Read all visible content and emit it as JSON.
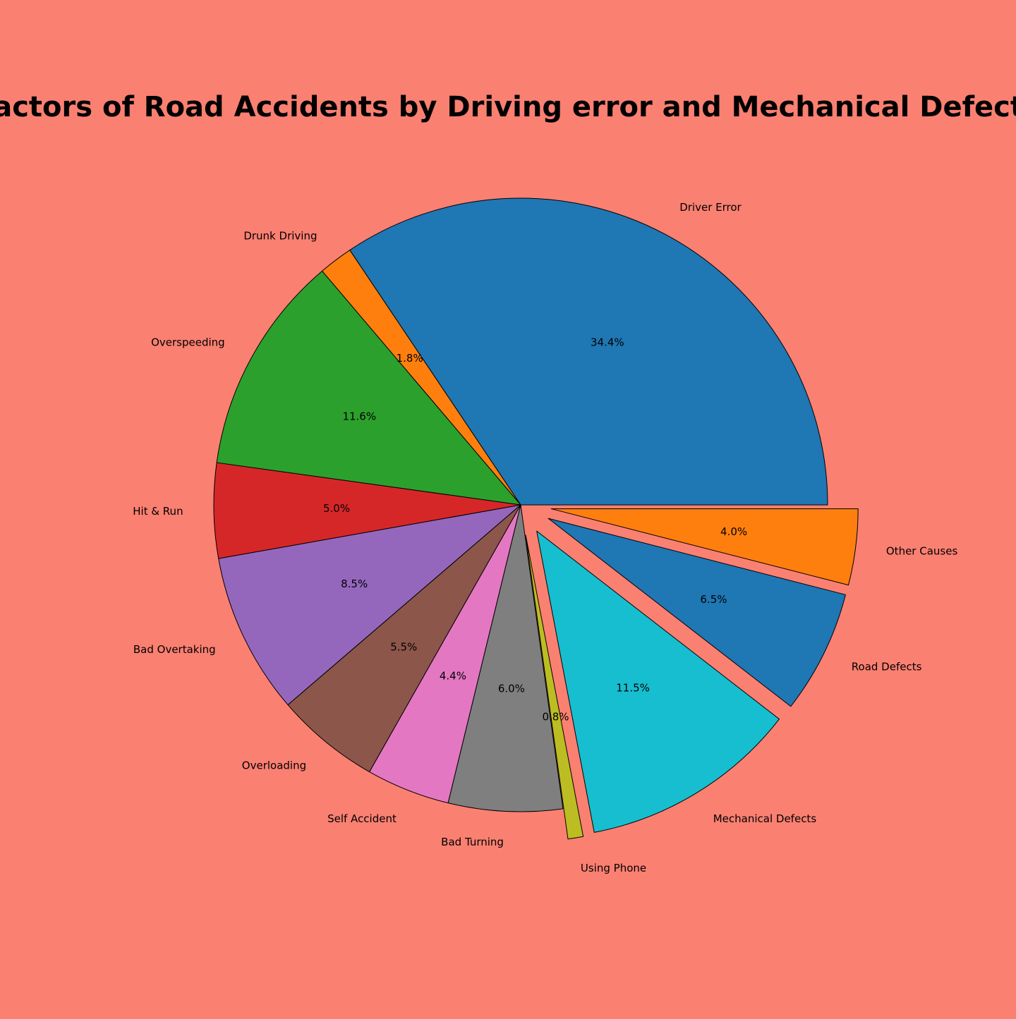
{
  "chart_data": {
    "type": "pie",
    "title": "Factors of Road Accidents by Driving error and Mechanical Defects",
    "background_color": "#FA8072",
    "edge_color": "#000000",
    "start_angle_deg": 0,
    "direction": "counterclockwise",
    "slices": [
      {
        "label": "Driver Error",
        "value": 34.4,
        "pct_label": "34.4%",
        "color": "#1F77B4",
        "exploded": false
      },
      {
        "label": "Drunk Driving",
        "value": 1.8,
        "pct_label": "1.8%",
        "color": "#FF7F0E",
        "exploded": false
      },
      {
        "label": "Overspeeding",
        "value": 11.6,
        "pct_label": "11.6%",
        "color": "#2CA02C",
        "exploded": false
      },
      {
        "label": "Hit & Run",
        "value": 5.0,
        "pct_label": "5.0%",
        "color": "#D62728",
        "exploded": false
      },
      {
        "label": "Bad Overtaking",
        "value": 8.5,
        "pct_label": "8.5%",
        "color": "#9467BD",
        "exploded": false
      },
      {
        "label": "Overloading",
        "value": 5.5,
        "pct_label": "5.5%",
        "color": "#8C564B",
        "exploded": false
      },
      {
        "label": "Self Accident",
        "value": 4.4,
        "pct_label": "4.4%",
        "color": "#E377C2",
        "exploded": false
      },
      {
        "label": "Bad Turning",
        "value": 6.0,
        "pct_label": "6.0%",
        "color": "#7F7F7F",
        "exploded": false
      },
      {
        "label": "Using Phone",
        "value": 0.8,
        "pct_label": "0.8%",
        "color": "#BCBD22",
        "exploded": true
      },
      {
        "label": "Mechanical Defects",
        "value": 11.5,
        "pct_label": "11.5%",
        "color": "#17BECF",
        "exploded": true
      },
      {
        "label": "Road Defects",
        "value": 6.5,
        "pct_label": "6.5%",
        "color": "#1F77B4",
        "exploded": true
      },
      {
        "label": "Other Causes",
        "value": 4.0,
        "pct_label": "4.0%",
        "color": "#FF7F0E",
        "exploded": true
      }
    ]
  }
}
